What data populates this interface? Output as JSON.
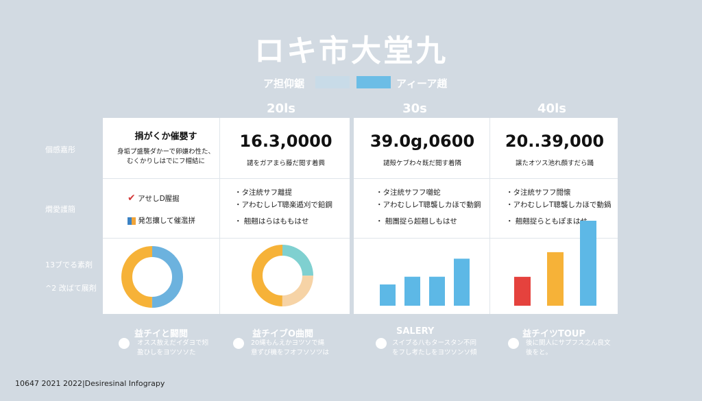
{
  "title": "ロキ市大堂九",
  "legend": {
    "left_label": "ア担仰鋸",
    "right_label": "アィーア趙",
    "colors": [
      "#c8dbe8",
      "#6cbde6"
    ]
  },
  "columns": [
    "20ls",
    "30s",
    "40ls"
  ],
  "row_labels": [
    "個感嘉彤",
    "燗愛護簡",
    "13ブでる素剤",
    "^2 改ばて展剤"
  ],
  "row1": {
    "note_title": "捐がくか催嬰す",
    "note_lines": [
      "身垢プ盛襲ダかーで卵嫌わ性た、",
      "むくかりしはでにフ帽結に"
    ],
    "cells": [
      {
        "value": "16.3,0000",
        "caption": "譴をガアまら藤だ閲す着興"
      },
      {
        "value": "39.0g,0600",
        "caption": "譴殻ケブわ々既だ閲す着隣"
      },
      {
        "value": "20..39,000",
        "caption": "譲たオツス池れ顔すだら踊"
      }
    ]
  },
  "row2": {
    "items": [
      {
        "icon": "check-icon",
        "text": "アせしD腥掘"
      },
      {
        "icon": "flag-icon",
        "text": "発怎攘して催濫拼"
      }
    ],
    "cells": [
      [
        "・タ注統サフ離提",
        "・アわむしレT聰楽遁刈で鉛鋼",
        "・ 翹翹はらはももはせ"
      ],
      [
        "・タ注統サフフ囃蛇",
        "・アわむしレT聰襲しカほで動鋼",
        "・ 翹團捉ら超翹しもはせ"
      ],
      [
        "・タ注統サフフ閲懐",
        "・アわむしレT聰襲しカほで動鍋",
        "・ 翹翹捉らともぽまはせ"
      ]
    ]
  },
  "chart_data": [
    {
      "type": "pie",
      "values": [
        50,
        50
      ],
      "colors": [
        "#6cb2de",
        "#f6b238"
      ]
    },
    {
      "type": "pie",
      "values": [
        25,
        25,
        50
      ],
      "colors": [
        "#7fd0d0",
        "#f6d3a6",
        "#f6b238"
      ]
    },
    {
      "type": "bar",
      "values": [
        33,
        45,
        45,
        73
      ],
      "colors": [
        "#5db8e6",
        "#5db8e6",
        "#5db8e6",
        "#5db8e6"
      ],
      "ylim": [
        0,
        100
      ]
    },
    {
      "type": "bar",
      "values": [
        34,
        63,
        100
      ],
      "colors": [
        "#e5423d",
        "#f6b238",
        "#5db8e6"
      ],
      "ylim": [
        0,
        100
      ]
    }
  ],
  "footer": [
    {
      "title": "益チイと闘閲",
      "lines": [
        "オスス敖えだイダヨで矧",
        "盈ひしをヨツソソた"
      ]
    },
    {
      "title": "益チイブO曲閲",
      "lines": [
        "20縄もんえかヨツソで縄",
        "意ずび機をフオフソソツは"
      ]
    },
    {
      "title": "SALERY",
      "lines": [
        "スイブる八もタースタン不同",
        "をフし考たしをヨツソンソ傾"
      ]
    },
    {
      "title": "益チイツTOUP",
      "lines": [
        "後に関人にサプフス之ん良文",
        "後をと。"
      ]
    }
  ],
  "bottom_caption": "10647 2021 2022|Desiresinal Infograpy"
}
